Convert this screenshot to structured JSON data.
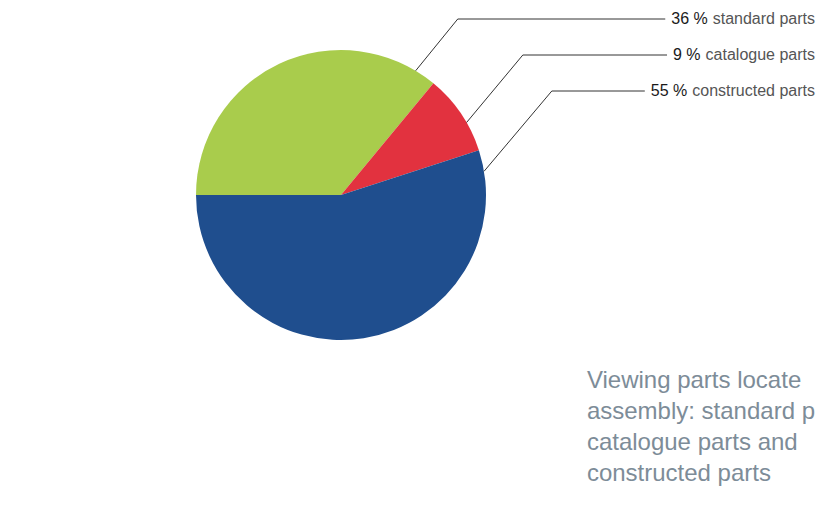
{
  "chart_data": {
    "type": "pie",
    "categories": [
      "standard parts",
      "catalogue parts",
      "constructed parts"
    ],
    "values": [
      36,
      9,
      55
    ],
    "value_labels": [
      "36 %",
      "9 %",
      "55 %"
    ],
    "colors": [
      "#a9cc4c",
      "#e2323f",
      "#1f4e8e"
    ],
    "data_labels": true,
    "annotations": [
      "Viewing parts locate",
      "assembly: standard p",
      "catalogue parts and",
      "constructed parts"
    ]
  }
}
